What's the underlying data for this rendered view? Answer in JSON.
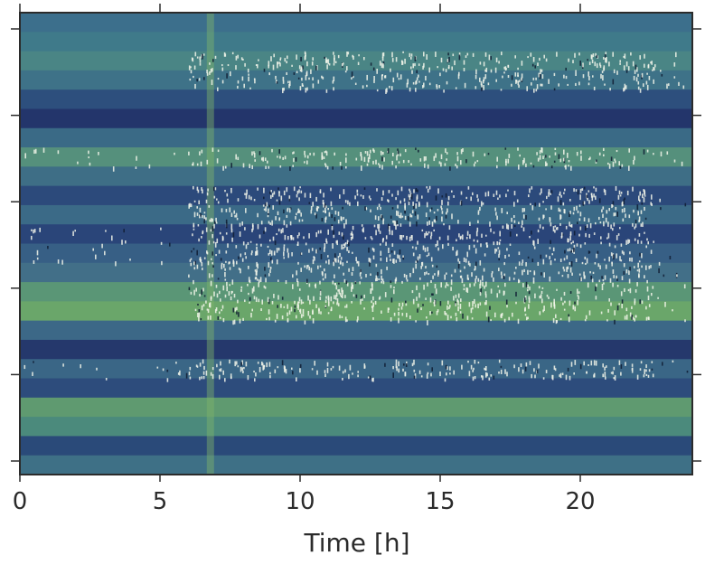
{
  "chart_data": {
    "type": "heatmap",
    "title": "",
    "xlabel": "Time [h]",
    "ylabel": "",
    "xlim": [
      0,
      24
    ],
    "x_ticks": [
      0,
      5,
      10,
      15,
      20
    ],
    "x_tick_labels": [
      "0",
      "5",
      "10",
      "15",
      "20"
    ],
    "y_tick_count": 6,
    "y_tick_labels": [
      "",
      "",
      "",
      "",
      "",
      ""
    ],
    "grid": false,
    "legend": "none",
    "colormap": "blue-green (dark navy to light green) with scattered white/black outlier points",
    "band_colors_top_to_bottom": [
      "#3c6f8c",
      "#3f7a8a",
      "#4a8585",
      "#3e7288",
      "#2d4f7d",
      "#23356b",
      "#3a6a86",
      "#55907c",
      "#3e6e86",
      "#2c4a7b",
      "#3b6a87",
      "#2a4579",
      "#375f85",
      "#426f88",
      "#5a9676",
      "#6aa66a",
      "#3c6887",
      "#25386c",
      "#3a6686",
      "#2d4c7c",
      "#5f9a70",
      "#4b8a7c",
      "#2a4a79",
      "#3e7086"
    ],
    "event_column_x": 6.8
  },
  "colors": {
    "frame": "#2b2b2b",
    "speckle_light": "#f3f6ea",
    "speckle_dark": "#0f1c33"
  }
}
